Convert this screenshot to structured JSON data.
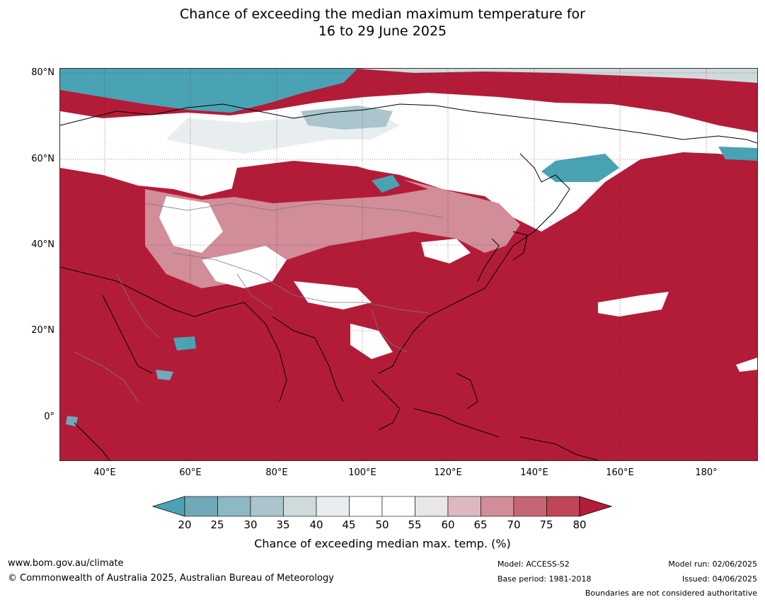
{
  "title": {
    "line1": "Chance of exceeding the median maximum temperature for",
    "line2": "16 to 29 June 2025"
  },
  "map": {
    "lat_labels": [
      "80°N",
      "60°N",
      "40°N",
      "20°N",
      "0°"
    ],
    "lon_labels": [
      "40°E",
      "60°E",
      "80°E",
      "100°E",
      "120°E",
      "140°E",
      "160°E",
      "180°"
    ],
    "ocean_color": "#b31c38"
  },
  "colorbar": {
    "ticks": [
      "20",
      "25",
      "30",
      "35",
      "40",
      "45",
      "50",
      "55",
      "60",
      "65",
      "70",
      "75",
      "80"
    ],
    "colors": [
      "#4aa3b5",
      "#6fa9b7",
      "#8db8c4",
      "#aac6cc",
      "#cfdadd",
      "#e8eef0",
      "#ffffff",
      "#ffffff",
      "#e8e6e8",
      "#ddb8bf",
      "#d18d98",
      "#c76673",
      "#bf4557",
      "#b31c38"
    ],
    "label": "Chance of exceeding median max. temp. (%)"
  },
  "footer": {
    "website": "www.bom.gov.au/climate",
    "copyright": "© Commonwealth of Australia 2025, Australian Bureau of Meteorology",
    "model": "Model: ACCESS-S2",
    "base_period": "Base period: 1981-2018",
    "model_run": "Model run: 02/06/2025",
    "issued": "Issued: 04/06/2025",
    "disclaimer": "Boundaries are not considered authoritative"
  }
}
